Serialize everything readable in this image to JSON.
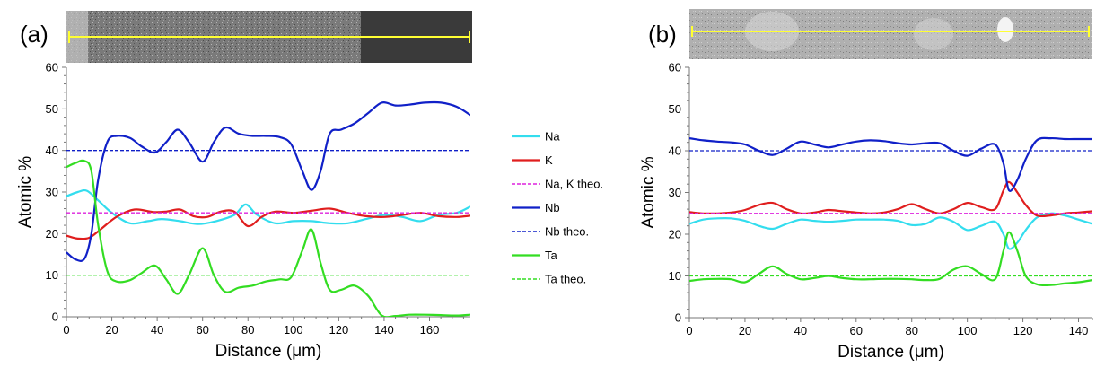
{
  "legend": [
    {
      "label": "Na",
      "color": "#33DDEE",
      "dash": false
    },
    {
      "label": "K",
      "color": "#E01E1E",
      "dash": false
    },
    {
      "label": "Na, K theo.",
      "color": "#DD22DD",
      "dash": true
    },
    {
      "label": "Nb",
      "color": "#1020C8",
      "dash": false
    },
    {
      "label": "Nb theo.",
      "color": "#1020C8",
      "dash": true
    },
    {
      "label": "Ta",
      "color": "#33DD22",
      "dash": false
    },
    {
      "label": "Ta theo.",
      "color": "#33DD22",
      "dash": true
    }
  ],
  "chart_data": [
    {
      "type": "line",
      "panel_label": "(a)",
      "xlabel": "Distance (μm)",
      "ylabel": "Atomic %",
      "xlim": [
        0,
        178
      ],
      "ylim": [
        0,
        60
      ],
      "xticks": [
        0,
        20,
        40,
        60,
        80,
        100,
        120,
        140,
        160
      ],
      "yticks": [
        0,
        10,
        20,
        30,
        40,
        50,
        60
      ],
      "series": [
        {
          "name": "Na",
          "color": "#33DDEE",
          "dash": false,
          "x": [
            0,
            5,
            9,
            14,
            20,
            28,
            36,
            42,
            50,
            58,
            66,
            74,
            79,
            84,
            92,
            100,
            108,
            116,
            124,
            132,
            140,
            148,
            156,
            164,
            172,
            178
          ],
          "y": [
            29,
            30,
            30.3,
            28,
            25,
            22.5,
            23,
            23.5,
            23,
            22.3,
            23,
            24.5,
            27,
            24.5,
            22.5,
            23,
            23,
            22.5,
            22.5,
            23.5,
            24.5,
            24,
            23,
            24.5,
            25,
            26.5
          ]
        },
        {
          "name": "K",
          "color": "#E01E1E",
          "dash": false,
          "x": [
            0,
            5,
            10,
            15,
            22,
            30,
            38,
            44,
            50,
            56,
            62,
            68,
            74,
            80,
            86,
            92,
            100,
            108,
            116,
            124,
            132,
            140,
            148,
            156,
            164,
            172,
            178
          ],
          "y": [
            19.5,
            18.8,
            19,
            21,
            24,
            25.8,
            25.2,
            25.3,
            25.8,
            24.2,
            24,
            25.3,
            25.3,
            21.8,
            24,
            25.3,
            25,
            25.5,
            26,
            25,
            24.2,
            24,
            24.5,
            25,
            24.2,
            24,
            24.3
          ]
        },
        {
          "name": "Na, K theo.",
          "color": "#DD22DD",
          "dash": true,
          "x": [
            0,
            178
          ],
          "y": [
            25,
            25
          ]
        },
        {
          "name": "Nb",
          "color": "#1020C8",
          "dash": false,
          "x": [
            0,
            4,
            8,
            11,
            14,
            18,
            22,
            28,
            33,
            39,
            44,
            49,
            54,
            60,
            65,
            70,
            76,
            82,
            88,
            94,
            99,
            104,
            108,
            112,
            116,
            121,
            127,
            133,
            139,
            145,
            151,
            158,
            165,
            172,
            178
          ],
          "y": [
            15.5,
            13.8,
            14,
            20,
            33,
            42,
            43.5,
            43,
            41,
            39.5,
            42,
            45,
            42,
            37.3,
            42,
            45.5,
            44,
            43.5,
            43.5,
            43.2,
            41.5,
            35,
            30.5,
            35,
            44,
            45,
            46.5,
            49,
            51.5,
            50.8,
            51,
            51.5,
            51.5,
            50.5,
            48.5
          ]
        },
        {
          "name": "Nb theo.",
          "color": "#1020C8",
          "dash": true,
          "x": [
            0,
            178
          ],
          "y": [
            40,
            40
          ]
        },
        {
          "name": "Ta",
          "color": "#33DD22",
          "dash": false,
          "x": [
            0,
            4,
            8,
            11,
            14,
            18,
            22,
            28,
            33,
            39,
            44,
            49,
            54,
            60,
            65,
            70,
            76,
            82,
            88,
            94,
            99,
            104,
            108,
            112,
            116,
            121,
            127,
            133,
            139,
            145,
            151,
            158,
            165,
            172,
            178
          ],
          "y": [
            36,
            37,
            37.5,
            35,
            22,
            11,
            8.5,
            8.8,
            10.5,
            12.3,
            9,
            5.5,
            10,
            16.5,
            10,
            6,
            7,
            7.5,
            8.5,
            9,
            9.5,
            16,
            21,
            13,
            6.5,
            6.5,
            7.5,
            5,
            0.3,
            0.2,
            0.5,
            0.5,
            0.4,
            0.3,
            0.5
          ]
        },
        {
          "name": "Ta theo.",
          "color": "#33DD22",
          "dash": true,
          "x": [
            0,
            178
          ],
          "y": [
            10,
            10
          ]
        }
      ]
    },
    {
      "type": "line",
      "panel_label": "(b)",
      "xlabel": "Distance (μm)",
      "ylabel": "Atomic %",
      "xlim": [
        0,
        145
      ],
      "ylim": [
        0,
        60
      ],
      "xticks": [
        0,
        20,
        40,
        60,
        80,
        100,
        120,
        140
      ],
      "yticks": [
        0,
        10,
        20,
        30,
        40,
        50,
        60
      ],
      "series": [
        {
          "name": "Na",
          "color": "#33DDEE",
          "dash": false,
          "x": [
            0,
            5,
            10,
            15,
            20,
            25,
            30,
            35,
            40,
            45,
            50,
            55,
            60,
            65,
            70,
            75,
            80,
            85,
            90,
            95,
            100,
            105,
            110,
            113,
            115,
            118,
            121,
            125,
            130,
            135,
            140,
            145
          ],
          "y": [
            22.5,
            23.5,
            23.8,
            23.8,
            23.2,
            22,
            21.3,
            22.5,
            23.5,
            23.2,
            23,
            23.2,
            23.5,
            23.5,
            23.5,
            23.2,
            22.2,
            22.5,
            24,
            23,
            21,
            22,
            23,
            20,
            16.5,
            18,
            21,
            24,
            25,
            24.5,
            23.5,
            22.5
          ]
        },
        {
          "name": "K",
          "color": "#E01E1E",
          "dash": false,
          "x": [
            0,
            5,
            10,
            15,
            20,
            25,
            30,
            35,
            40,
            45,
            50,
            55,
            60,
            65,
            70,
            75,
            80,
            85,
            90,
            95,
            100,
            105,
            110,
            113,
            115,
            118,
            121,
            125,
            130,
            135,
            140,
            145
          ],
          "y": [
            25.3,
            25,
            25,
            25.2,
            25.8,
            27,
            27.5,
            26,
            25,
            25.2,
            25.8,
            25.5,
            25.2,
            25,
            25.2,
            26,
            27.2,
            26,
            25,
            26,
            27.5,
            26.5,
            26,
            30.5,
            32.5,
            30,
            27,
            24.5,
            24.5,
            25,
            25.2,
            25.5
          ]
        },
        {
          "name": "Na, K theo.",
          "color": "#DD22DD",
          "dash": true,
          "x": [
            0,
            145
          ],
          "y": [
            25,
            25
          ]
        },
        {
          "name": "Nb",
          "color": "#1020C8",
          "dash": false,
          "x": [
            0,
            5,
            10,
            15,
            20,
            25,
            30,
            35,
            40,
            45,
            50,
            55,
            60,
            65,
            70,
            75,
            80,
            85,
            90,
            95,
            100,
            105,
            110,
            113,
            115,
            118,
            121,
            125,
            130,
            135,
            140,
            145
          ],
          "y": [
            43,
            42.5,
            42.2,
            42,
            41.5,
            40,
            39,
            40.5,
            42.2,
            41.5,
            40.8,
            41.5,
            42.2,
            42.5,
            42.3,
            41.8,
            41.5,
            41.8,
            41.8,
            40,
            38.8,
            40.5,
            41.5,
            37,
            30.5,
            33,
            38,
            42.5,
            43,
            42.8,
            42.8,
            42.8
          ]
        },
        {
          "name": "Nb theo.",
          "color": "#1020C8",
          "dash": true,
          "x": [
            0,
            145
          ],
          "y": [
            40,
            40
          ]
        },
        {
          "name": "Ta",
          "color": "#33DD22",
          "dash": false,
          "x": [
            0,
            5,
            10,
            15,
            20,
            25,
            30,
            35,
            40,
            45,
            50,
            55,
            60,
            65,
            70,
            75,
            80,
            85,
            90,
            95,
            100,
            105,
            110,
            113,
            115,
            118,
            121,
            125,
            130,
            135,
            140,
            145
          ],
          "y": [
            8.8,
            9.2,
            9.3,
            9.2,
            8.5,
            10.5,
            12.3,
            10.5,
            9.2,
            9.5,
            10,
            9.5,
            9.2,
            9.2,
            9.3,
            9.3,
            9.2,
            9,
            9.3,
            11.5,
            12.3,
            10.5,
            9.2,
            16,
            20.5,
            16,
            10,
            8,
            7.8,
            8.2,
            8.5,
            9
          ]
        },
        {
          "name": "Ta theo.",
          "color": "#33DD22",
          "dash": true,
          "x": [
            0,
            145
          ],
          "y": [
            10,
            10
          ]
        }
      ]
    }
  ]
}
